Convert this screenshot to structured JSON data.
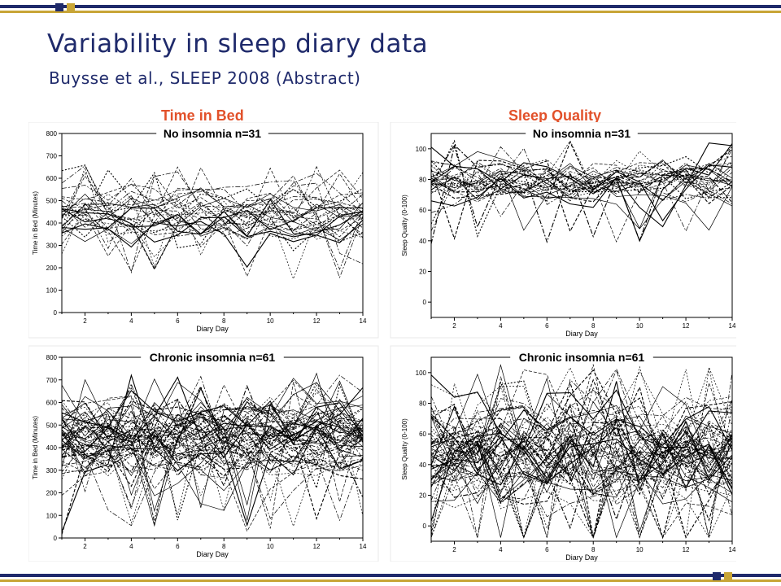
{
  "slide": {
    "title": "Variability in sleep diary data",
    "subtitle": "Buysse et al., SLEEP 2008 (Abstract)",
    "left_column_title": "Time in Bed",
    "right_column_title": "Sleep Quality"
  },
  "colors": {
    "navy": "#1f2a6b",
    "gold": "#c8a536",
    "orange": "#e2512a",
    "line": "#000000"
  },
  "chart_data": [
    {
      "type": "line",
      "title": "No insomnia n=31",
      "xlabel": "Diary Day",
      "ylabel": "Time in Bed (Minutes)",
      "xlim": [
        1,
        14
      ],
      "ylim": [
        0,
        800
      ],
      "xticks": [
        2,
        4,
        6,
        8,
        10,
        12,
        14
      ],
      "yticks": [
        0,
        100,
        200,
        300,
        400,
        500,
        600,
        700,
        800
      ],
      "n_series": 31,
      "typical_range": [
        300,
        600
      ],
      "representative_series_mean": [
        450,
        455,
        440,
        460,
        450,
        445,
        455,
        450,
        440,
        460,
        450,
        455,
        445,
        450
      ]
    },
    {
      "type": "line",
      "title": "No insomnia n=31",
      "xlabel": "Diary Day",
      "ylabel": "Sleep Quality (0-100)",
      "xlim": [
        1,
        14
      ],
      "ylim": [
        -10,
        110
      ],
      "xticks": [
        2,
        4,
        6,
        8,
        10,
        12,
        14
      ],
      "yticks": [
        0,
        20,
        40,
        60,
        80,
        100
      ],
      "n_series": 31,
      "typical_range": [
        60,
        98
      ],
      "representative_series_mean": [
        88,
        85,
        86,
        84,
        87,
        85,
        88,
        86,
        84,
        87,
        85,
        86,
        84,
        86
      ]
    },
    {
      "type": "line",
      "title": "Chronic insomnia n=61",
      "xlabel": "Diary Day",
      "ylabel": "Time in Bed (Minutes)",
      "xlim": [
        1,
        14
      ],
      "ylim": [
        0,
        800
      ],
      "xticks": [
        2,
        4,
        6,
        8,
        10,
        12,
        14
      ],
      "yticks": [
        0,
        100,
        200,
        300,
        400,
        500,
        600,
        700,
        800
      ],
      "n_series": 61,
      "typical_range": [
        250,
        650
      ],
      "representative_series_mean": [
        440,
        450,
        445,
        455,
        440,
        450,
        445,
        455,
        440,
        450,
        445,
        450,
        440,
        445
      ]
    },
    {
      "type": "line",
      "title": "Chronic insomnia n=61",
      "xlabel": "Diary Day",
      "ylabel": "Sleep Quality (0-100)",
      "xlim": [
        1,
        14
      ],
      "ylim": [
        -10,
        110
      ],
      "xticks": [
        2,
        4,
        6,
        8,
        10,
        12,
        14
      ],
      "yticks": [
        0,
        20,
        40,
        60,
        80,
        100
      ],
      "n_series": 61,
      "typical_range": [
        10,
        90
      ],
      "representative_series_mean": [
        52,
        50,
        48,
        55,
        50,
        47,
        53,
        50,
        48,
        52,
        50,
        49,
        51,
        50
      ]
    }
  ]
}
